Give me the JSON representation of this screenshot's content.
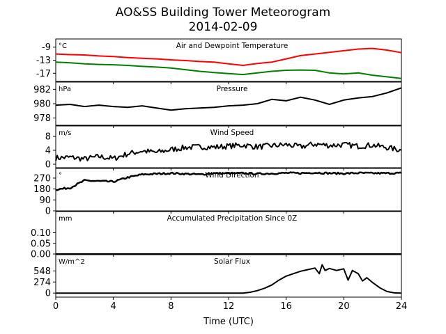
{
  "title": "AO&SS Building Tower Meteorogram",
  "subtitle": "2014-02-09",
  "xlabel": "Time (UTC)",
  "chart_data": [
    {
      "type": "line",
      "title": "Air and Dewpoint Temperature",
      "units": "°C",
      "xlim": [
        0,
        24
      ],
      "ylim": [
        -19.5,
        -6.5
      ],
      "yticks": [
        "-9",
        "-13",
        "-17"
      ],
      "ytick_values": [
        -9,
        -13,
        -17
      ],
      "x": [
        0,
        1,
        2,
        3,
        4,
        5,
        6,
        7,
        8,
        9,
        10,
        11,
        12,
        13,
        14,
        15,
        16,
        17,
        18,
        19,
        20,
        21,
        22,
        23,
        24
      ],
      "series": [
        {
          "color": "#ff0000",
          "values": [
            -11.1,
            -11.3,
            -11.4,
            -11.7,
            -11.9,
            -12.2,
            -12.4,
            -12.6,
            -12.9,
            -13.1,
            -13.4,
            -13.6,
            -14.1,
            -14.6,
            -14.0,
            -13.6,
            -12.6,
            -11.6,
            -11.1,
            -10.6,
            -10.1,
            -9.6,
            -9.4,
            -9.9,
            -10.7
          ]
        },
        {
          "color": "#008000",
          "values": [
            -13.6,
            -13.8,
            -14.1,
            -14.3,
            -14.4,
            -14.6,
            -14.9,
            -15.1,
            -15.4,
            -15.9,
            -16.4,
            -16.8,
            -17.1,
            -17.4,
            -16.9,
            -16.4,
            -16.1,
            -16.0,
            -16.1,
            -16.9,
            -17.2,
            -16.9,
            -17.6,
            -18.1,
            -18.6
          ]
        }
      ]
    },
    {
      "type": "line",
      "title": "Pressure",
      "units": "hPa",
      "xlim": [
        0,
        24
      ],
      "ylim": [
        977,
        983
      ],
      "yticks": [
        "982",
        "980",
        "978"
      ],
      "ytick_values": [
        982,
        980,
        978
      ],
      "x": [
        0,
        1,
        2,
        3,
        4,
        5,
        6,
        7,
        8,
        9,
        10,
        11,
        12,
        13,
        14,
        15,
        16,
        17,
        18,
        19,
        20,
        21,
        22,
        23,
        24
      ],
      "series": [
        {
          "color": "#000000",
          "values": [
            979.8,
            979.9,
            979.6,
            979.8,
            979.6,
            979.5,
            979.7,
            979.4,
            979.1,
            979.3,
            979.4,
            979.5,
            979.7,
            979.8,
            980.0,
            980.6,
            980.4,
            980.9,
            980.5,
            979.9,
            980.5,
            980.8,
            981.0,
            981.5,
            982.2
          ]
        }
      ]
    },
    {
      "type": "line",
      "title": "Wind Speed",
      "units": "m/s",
      "xlim": [
        0,
        24
      ],
      "ylim": [
        -1,
        11
      ],
      "yticks": [
        "8",
        "4",
        "0"
      ],
      "ytick_values": [
        8,
        4,
        0
      ],
      "x": [
        0,
        1,
        2,
        3,
        4,
        5,
        6,
        7,
        8,
        9,
        10,
        11,
        12,
        13,
        14,
        15,
        16,
        17,
        18,
        19,
        20,
        21,
        22,
        23,
        24
      ],
      "series": [
        {
          "color": "#000000",
          "values": [
            1.8,
            2.0,
            1.5,
            2.2,
            1.6,
            3.0,
            3.8,
            3.4,
            4.2,
            4.8,
            5.0,
            4.9,
            5.2,
            5.5,
            5.0,
            5.3,
            5.6,
            5.0,
            5.8,
            5.4,
            5.6,
            5.2,
            5.5,
            4.8,
            4.0
          ]
        }
      ]
    },
    {
      "type": "line",
      "title": "Wind Direction",
      "units": "°",
      "xlim": [
        0,
        24
      ],
      "ylim": [
        0,
        350
      ],
      "yticks": [
        "270",
        "180",
        "90",
        "0"
      ],
      "ytick_values": [
        270,
        180,
        90,
        0
      ],
      "x": [
        0,
        1,
        2,
        3,
        4,
        5,
        6,
        7,
        8,
        9,
        10,
        11,
        12,
        13,
        14,
        15,
        16,
        17,
        18,
        19,
        20,
        21,
        22,
        23,
        24
      ],
      "series": [
        {
          "color": "#000000",
          "values": [
            175,
            190,
            250,
            245,
            240,
            275,
            300,
            305,
            310,
            305,
            300,
            310,
            308,
            310,
            305,
            308,
            312,
            310,
            315,
            310,
            308,
            312,
            310,
            310,
            312
          ]
        }
      ]
    },
    {
      "type": "line",
      "title": "Accumulated Precipitation Since 0Z",
      "units": "mm",
      "xlim": [
        0,
        24
      ],
      "ylim": [
        0,
        0.2
      ],
      "yticks": [
        "0.10",
        "0.05",
        "0.00"
      ],
      "ytick_values": [
        0.1,
        0.05,
        0.0
      ],
      "x": [
        0,
        24
      ],
      "series": [
        {
          "color": "#000000",
          "values": [
            0,
            0
          ]
        }
      ]
    },
    {
      "type": "line",
      "title": "Solar Flux",
      "units": "W/m^2",
      "xlim": [
        0,
        24
      ],
      "ylim": [
        -100,
        950
      ],
      "yticks": [
        "548",
        "274",
        "0"
      ],
      "ytick_values": [
        548,
        274,
        0
      ],
      "x": [
        0,
        13,
        13.5,
        14,
        14.5,
        15,
        15.5,
        16,
        16.5,
        17,
        17.5,
        18,
        18.3,
        18.5,
        18.7,
        19,
        19.5,
        20,
        20.3,
        20.6,
        21,
        21.3,
        21.6,
        22,
        22.5,
        23,
        23.5,
        24
      ],
      "series": [
        {
          "color": "#000000",
          "values": [
            0,
            0,
            20,
            60,
            120,
            200,
            320,
            420,
            480,
            540,
            580,
            620,
            480,
            700,
            560,
            610,
            560,
            600,
            320,
            560,
            480,
            300,
            380,
            260,
            130,
            40,
            5,
            0
          ]
        }
      ]
    }
  ],
  "xticks": [
    "0",
    "4",
    "8",
    "12",
    "16",
    "20",
    "24"
  ]
}
